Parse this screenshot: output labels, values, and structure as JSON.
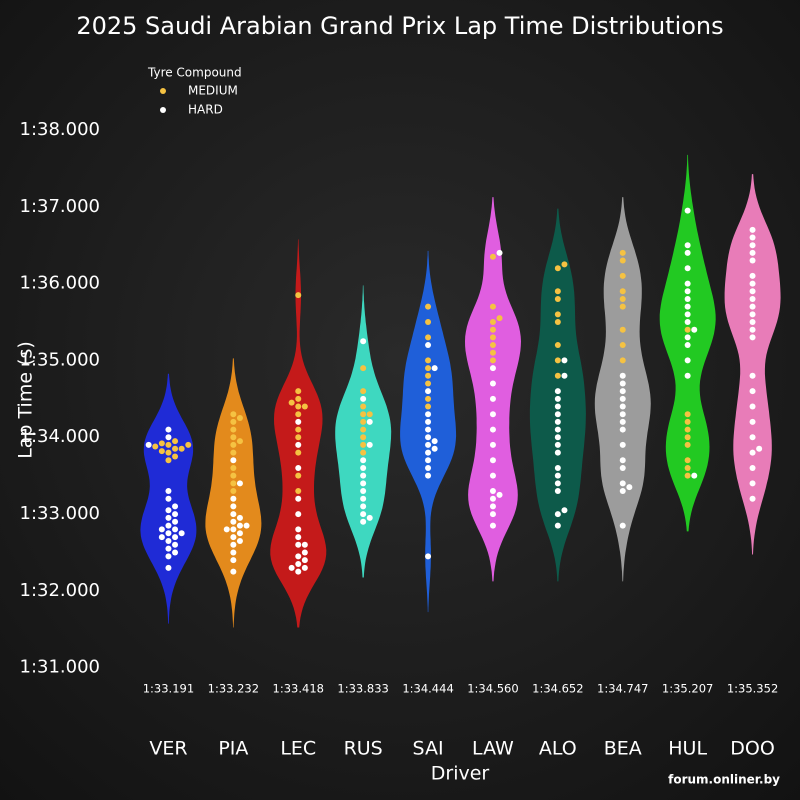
{
  "chart_data": {
    "type": "violin",
    "title": "2025 Saudi Arabian Grand Prix Lap Time Distributions",
    "xlabel": "Driver",
    "ylabel": "Lap Time (s)",
    "legend_title": "Tyre Compound",
    "legend_position": "upper left",
    "compounds": [
      {
        "name": "MEDIUM",
        "color": "#f5c242"
      },
      {
        "name": "HARD",
        "color": "#ffffff"
      }
    ],
    "watermark": "forum.onliner.by",
    "ylim": [
      90.84,
      98.39
    ],
    "yticks": [
      {
        "value": 91,
        "label": "1:31.000"
      },
      {
        "value": 92,
        "label": "1:32.000"
      },
      {
        "value": 93,
        "label": "1:33.000"
      },
      {
        "value": 94,
        "label": "1:34.000"
      },
      {
        "value": 95,
        "label": "1:35.000"
      },
      {
        "value": 96,
        "label": "1:36.000"
      },
      {
        "value": 97,
        "label": "1:37.000"
      },
      {
        "value": 98,
        "label": "1:38.000"
      }
    ],
    "drivers": [
      {
        "name": "VER",
        "color": "#1f2bd6",
        "median": {
          "value": 93.191,
          "label": "1:33.191"
        },
        "points": {
          "MEDIUM": [
            93.85,
            93.9,
            93.8,
            93.88,
            93.95,
            93.7,
            93.75,
            93.85,
            93.92,
            93.9,
            93.82
          ],
          "HARD": [
            94.1,
            94.0,
            93.9,
            93.3,
            93.2,
            93.1,
            93.05,
            93.0,
            92.95,
            92.9,
            92.85,
            92.8,
            92.8,
            92.75,
            92.75,
            92.7,
            92.7,
            92.65,
            92.6,
            92.55,
            92.5,
            92.45,
            92.3
          ]
        }
      },
      {
        "name": "PIA",
        "color": "#e38a1c",
        "median": {
          "value": 93.232,
          "label": "1:33.232"
        },
        "points": {
          "MEDIUM": [
            94.3,
            94.25,
            94.2,
            94.1,
            94.0,
            93.95,
            93.9,
            93.8,
            93.6,
            93.5,
            93.4,
            93.3
          ],
          "HARD": [
            93.2,
            93.1,
            93.0,
            92.95,
            92.9,
            92.85,
            92.85,
            92.8,
            92.8,
            92.75,
            92.7,
            92.65,
            92.6,
            92.5,
            92.4,
            92.25,
            93.7,
            93.4
          ]
        }
      },
      {
        "name": "LEC",
        "color": "#c41a1a",
        "median": {
          "value": 93.418,
          "label": "1:33.418"
        },
        "points": {
          "MEDIUM": [
            95.85,
            94.6,
            94.5,
            94.45,
            94.4,
            94.4,
            94.3,
            94.1,
            94.0,
            93.8,
            93.5,
            93.3
          ],
          "HARD": [
            94.2,
            93.9,
            93.6,
            93.2,
            93.0,
            92.8,
            92.6,
            92.5,
            92.45,
            92.4,
            92.35,
            92.3,
            92.3,
            92.25,
            92.6,
            92.7
          ]
        }
      },
      {
        "name": "RUS",
        "color": "#3ed8c0",
        "median": {
          "value": 93.833,
          "label": "1:33.833"
        },
        "points": {
          "MEDIUM": [
            94.9,
            94.6,
            94.4,
            94.3,
            94.3,
            94.2,
            94.1,
            94.0,
            93.9,
            93.8
          ],
          "HARD": [
            95.25,
            94.5,
            94.2,
            93.9,
            93.7,
            93.6,
            93.5,
            93.4,
            93.3,
            93.2,
            93.1,
            93.0,
            92.95,
            92.9
          ]
        }
      },
      {
        "name": "SAI",
        "color": "#1f5fd9",
        "median": {
          "value": 94.444,
          "label": "1:34.444"
        },
        "points": {
          "MEDIUM": [
            95.7,
            95.5,
            95.3,
            95.0,
            94.9,
            94.8,
            94.7,
            94.5,
            94.4
          ],
          "HARD": [
            95.2,
            94.9,
            94.6,
            94.3,
            94.2,
            94.1,
            94.0,
            93.95,
            93.9,
            93.85,
            93.8,
            93.7,
            93.6,
            93.5,
            92.45
          ]
        }
      },
      {
        "name": "LAW",
        "color": "#e05ee0",
        "median": {
          "value": 94.56,
          "label": "1:34.560"
        },
        "points": {
          "MEDIUM": [
            96.35,
            95.7,
            95.55,
            95.5,
            95.4,
            95.3,
            95.2,
            95.1,
            95.0
          ],
          "HARD": [
            94.9,
            94.7,
            94.5,
            94.3,
            94.1,
            93.9,
            93.7,
            93.5,
            93.3,
            93.25,
            93.2,
            93.1,
            93.0,
            92.85,
            96.4
          ]
        }
      },
      {
        "name": "ALO",
        "color": "#0d5a4a",
        "median": {
          "value": 94.652,
          "label": "1:34.652"
        },
        "points": {
          "MEDIUM": [
            96.25,
            96.2,
            95.9,
            95.8,
            95.6,
            95.5,
            95.2,
            95.0,
            94.8
          ],
          "HARD": [
            95.0,
            94.8,
            94.6,
            94.5,
            94.4,
            94.3,
            94.2,
            94.1,
            94.0,
            93.9,
            93.8,
            93.5,
            93.4,
            93.3,
            93.0,
            93.05,
            92.85,
            93.6
          ]
        }
      },
      {
        "name": "BEA",
        "color": "#9c9c9c",
        "median": {
          "value": 94.747,
          "label": "1:34.747"
        },
        "points": {
          "MEDIUM": [
            96.4,
            96.3,
            96.1,
            95.9,
            95.8,
            95.7,
            95.4,
            95.2,
            95.0
          ],
          "HARD": [
            94.8,
            94.7,
            94.6,
            94.5,
            94.4,
            94.3,
            94.1,
            93.9,
            93.7,
            93.6,
            93.4,
            93.35,
            93.3,
            92.85,
            94.2
          ]
        }
      },
      {
        "name": "HUL",
        "color": "#22c922",
        "median": {
          "value": 95.207,
          "label": "1:35.207"
        },
        "points": {
          "MEDIUM": [
            94.3,
            94.2,
            94.1,
            94.0,
            93.9,
            93.7,
            93.6,
            93.5,
            95.4
          ],
          "HARD": [
            96.95,
            96.4,
            96.2,
            96.0,
            95.9,
            95.8,
            95.7,
            95.6,
            95.5,
            95.4,
            95.3,
            95.2,
            95.0,
            94.8,
            93.5,
            96.5
          ]
        }
      },
      {
        "name": "DOO",
        "color": "#e87cb8",
        "median": {
          "value": 95.352,
          "label": "1:35.352"
        },
        "points": {
          "MEDIUM": [],
          "HARD": [
            96.7,
            96.6,
            96.5,
            96.4,
            96.3,
            96.1,
            96.0,
            95.9,
            95.8,
            95.7,
            95.6,
            95.5,
            95.4,
            95.3,
            94.8,
            94.6,
            94.4,
            94.2,
            94.0,
            93.8,
            93.6,
            93.4,
            93.2,
            93.85
          ]
        }
      }
    ]
  }
}
